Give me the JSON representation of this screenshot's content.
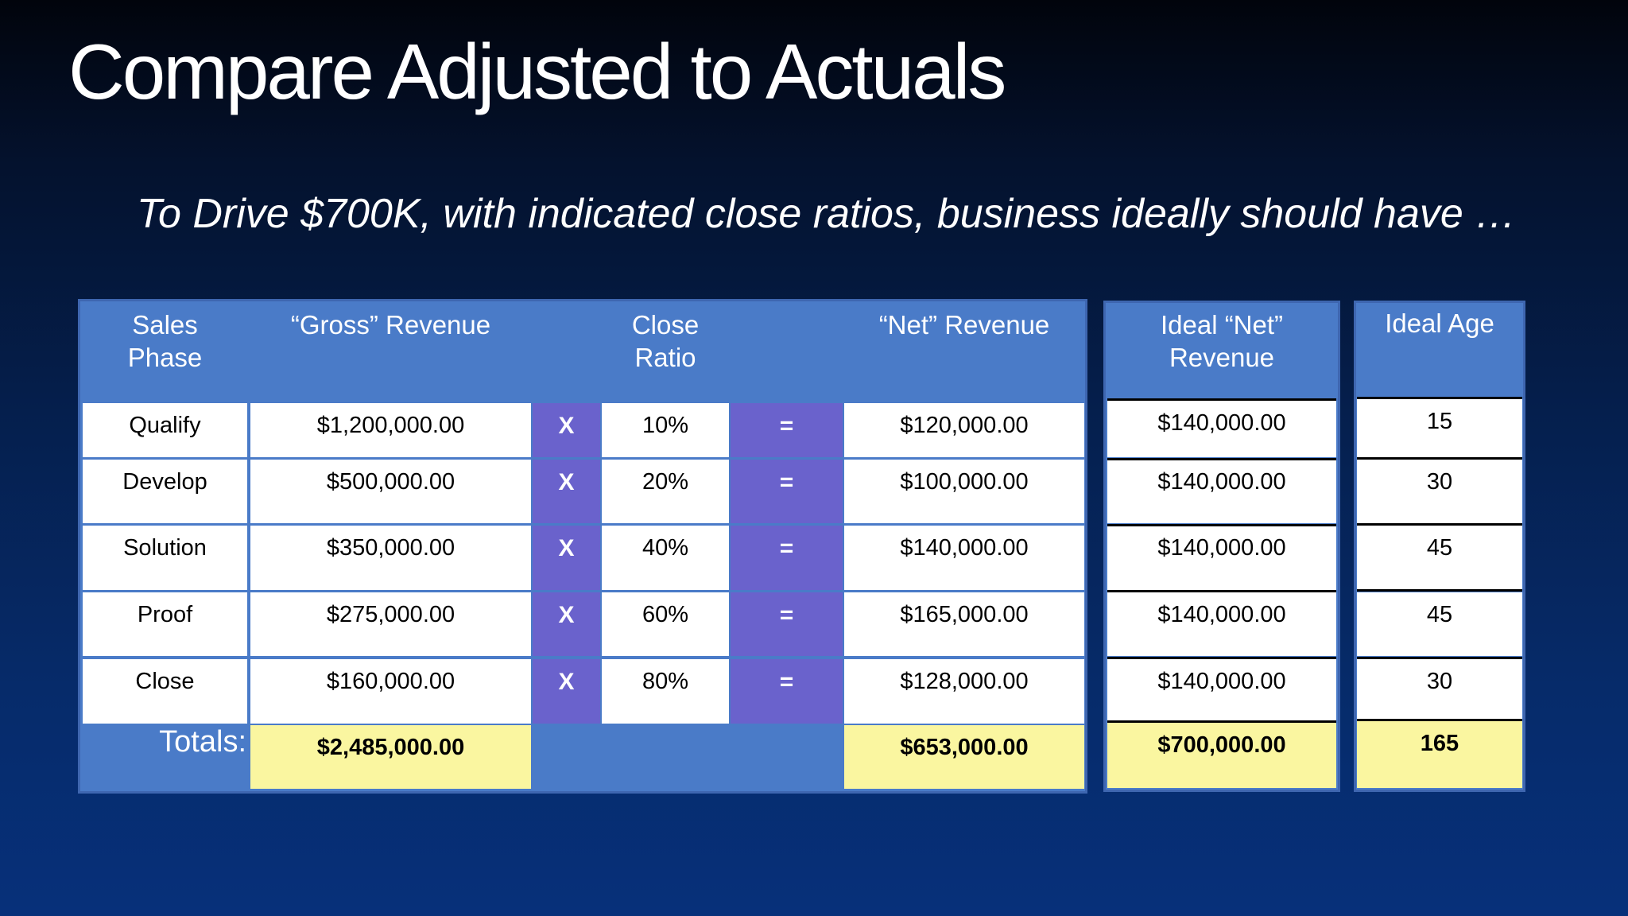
{
  "title": "Compare Adjusted to Actuals",
  "subtitle": "To Drive $700K, with indicated close ratios, business ideally should have …",
  "table": {
    "headers": {
      "phase_line1": "Sales",
      "phase_line2": "Phase",
      "gross": "“Gross” Revenue",
      "ratio_line1": "Close",
      "ratio_line2": "Ratio",
      "net": "“Net” Revenue",
      "ideal_net_line1": "Ideal “Net”",
      "ideal_net_line2": "Revenue",
      "ideal_age": "Ideal Age"
    },
    "multiply_symbol": "X",
    "equals_symbol": "=",
    "rows": [
      {
        "phase": "Qualify",
        "gross": "$1,200,000.00",
        "ratio": "10%",
        "net": "$120,000.00",
        "ideal_net": "$140,000.00",
        "ideal_age": "15"
      },
      {
        "phase": "Develop",
        "gross": "$500,000.00",
        "ratio": "20%",
        "net": "$100,000.00",
        "ideal_net": "$140,000.00",
        "ideal_age": "30"
      },
      {
        "phase": "Solution",
        "gross": "$350,000.00",
        "ratio": "40%",
        "net": "$140,000.00",
        "ideal_net": "$140,000.00",
        "ideal_age": "45"
      },
      {
        "phase": "Proof",
        "gross": "$275,000.00",
        "ratio": "60%",
        "net": "$165,000.00",
        "ideal_net": "$140,000.00",
        "ideal_age": "45"
      },
      {
        "phase": "Close",
        "gross": "$160,000.00",
        "ratio": "80%",
        "net": "$128,000.00",
        "ideal_net": "$140,000.00",
        "ideal_age": "30"
      }
    ],
    "totals": {
      "label": "Totals:",
      "gross": "$2,485,000.00",
      "net": "$653,000.00",
      "ideal_net": "$700,000.00",
      "ideal_age": "165"
    }
  },
  "colors": {
    "header_blue": "#4a7bc8",
    "operator_purple": "#6a62cc",
    "totals_yellow": "#faf6a0"
  }
}
